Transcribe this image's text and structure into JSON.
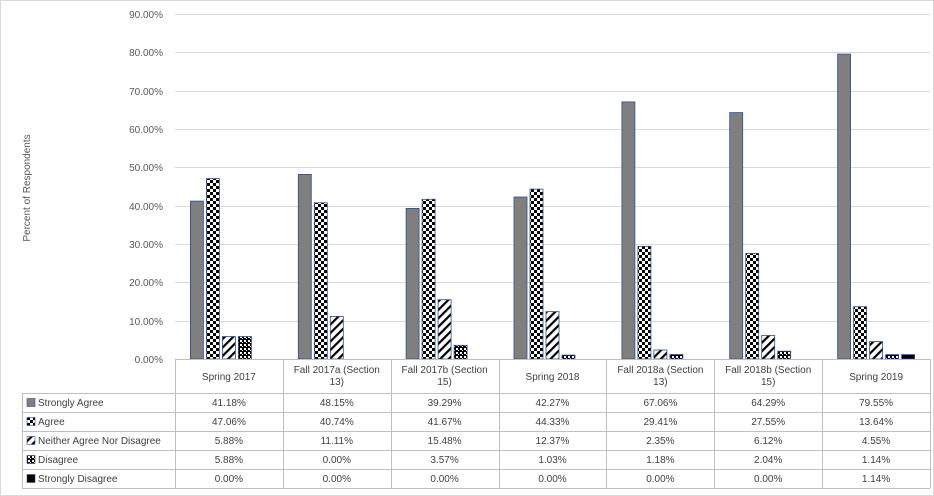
{
  "chart_data": {
    "type": "bar",
    "ylabel": "Percent of Respondents",
    "ylim": [
      0,
      90
    ],
    "ytick_values": [
      0,
      10,
      20,
      30,
      40,
      50,
      60,
      70,
      80,
      90
    ],
    "ytick_labels": [
      "0.00%",
      "10.00%",
      "20.00%",
      "30.00%",
      "40.00%",
      "50.00%",
      "60.00%",
      "70.00%",
      "80.00%",
      "90.00%"
    ],
    "grid": true,
    "legend": "data-table",
    "categories": [
      [
        "Spring 2017"
      ],
      [
        "Fall 2017a (Section",
        "13)"
      ],
      [
        "Fall 2017b (Section",
        "15)"
      ],
      [
        "Spring 2018"
      ],
      [
        "Fall 2018a (Section",
        "13)"
      ],
      [
        "Fall 2018b (Section",
        "15)"
      ],
      [
        "Spring 2019"
      ]
    ],
    "series": [
      {
        "name": "Strongly Agree",
        "pattern": "solid-gray",
        "values": [
          41.18,
          48.15,
          39.29,
          42.27,
          67.06,
          64.29,
          79.55
        ],
        "labels": [
          "41.18%",
          "48.15%",
          "39.29%",
          "42.27%",
          "67.06%",
          "64.29%",
          "79.55%"
        ]
      },
      {
        "name": "Agree",
        "pattern": "checkerboard",
        "values": [
          47.06,
          40.74,
          41.67,
          44.33,
          29.41,
          27.55,
          13.64
        ],
        "labels": [
          "47.06%",
          "40.74%",
          "41.67%",
          "44.33%",
          "29.41%",
          "27.55%",
          "13.64%"
        ]
      },
      {
        "name": "Neither Agree Nor Disagree",
        "pattern": "diagonal-stripes",
        "values": [
          5.88,
          11.11,
          15.48,
          12.37,
          2.35,
          6.12,
          4.55
        ],
        "labels": [
          "5.88%",
          "11.11%",
          "15.48%",
          "12.37%",
          "2.35%",
          "6.12%",
          "4.55%"
        ]
      },
      {
        "name": "Disagree",
        "pattern": "dotted",
        "values": [
          5.88,
          0.0,
          3.57,
          1.03,
          1.18,
          2.04,
          1.14
        ],
        "labels": [
          "5.88%",
          "0.00%",
          "3.57%",
          "1.03%",
          "1.18%",
          "2.04%",
          "1.14%"
        ]
      },
      {
        "name": "Strongly Disagree",
        "pattern": "solid-black",
        "values": [
          0.0,
          0.0,
          0.0,
          0.0,
          0.0,
          0.0,
          1.14
        ],
        "labels": [
          "0.00%",
          "0.00%",
          "0.00%",
          "0.00%",
          "0.00%",
          "0.00%",
          "1.14%"
        ]
      }
    ]
  },
  "colors": {
    "strongly_agree_fill": "#7f7f7f",
    "bar_outline": "#2f4f8f",
    "grid": "#d9d9d9",
    "pattern_dark": "#000000",
    "pattern_light": "#ffffff",
    "table_border": "#bfbfbf"
  }
}
